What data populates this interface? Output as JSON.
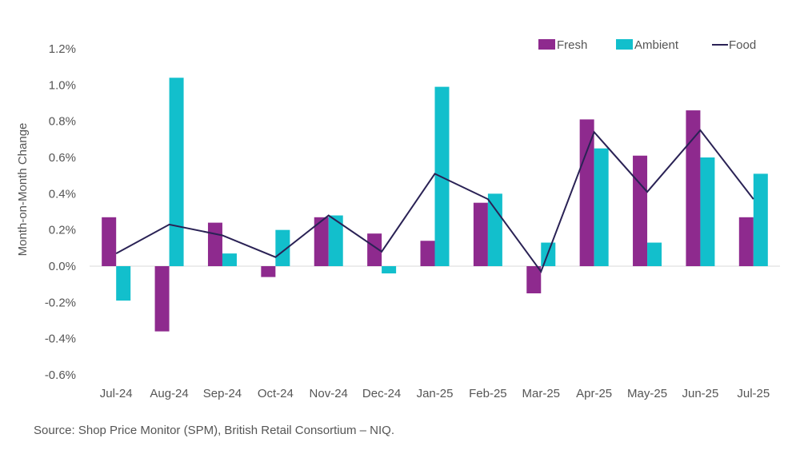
{
  "colors": {
    "fresh": "#8E2A8E",
    "ambient": "#12BFCC",
    "food": "#2A2255",
    "zero_line": "#D9D9D9"
  },
  "source": "Source: Shop Price Monitor (SPM), British Retail Consortium – NIQ.",
  "chart_data": {
    "type": "bar",
    "categories": [
      "Jul-24",
      "Aug-24",
      "Sep-24",
      "Oct-24",
      "Nov-24",
      "Dec-24",
      "Jan-25",
      "Feb-25",
      "Mar-25",
      "Apr-25",
      "May-25",
      "Jun-25",
      "Jul-25"
    ],
    "series": [
      {
        "name": "Fresh",
        "type": "bar",
        "values": [
          0.27,
          -0.36,
          0.24,
          -0.06,
          0.27,
          0.18,
          0.14,
          0.35,
          -0.15,
          0.81,
          0.61,
          0.86,
          0.27
        ]
      },
      {
        "name": "Ambient",
        "type": "bar",
        "values": [
          -0.19,
          1.04,
          0.07,
          0.2,
          0.28,
          -0.04,
          0.99,
          0.4,
          0.13,
          0.65,
          0.13,
          0.6,
          0.51
        ]
      },
      {
        "name": "Food",
        "type": "line",
        "values": [
          0.07,
          0.23,
          0.17,
          0.05,
          0.28,
          0.08,
          0.51,
          0.37,
          -0.03,
          0.74,
          0.41,
          0.75,
          0.37
        ]
      }
    ],
    "title": "",
    "xlabel": "",
    "ylabel": "Month-on-Month Change",
    "ylim": [
      -0.6,
      1.2
    ],
    "yticks": [
      "1.2%",
      "1.0%",
      "0.8%",
      "0.6%",
      "0.4%",
      "0.2%",
      "0.0%",
      "-0.2%",
      "-0.4%",
      "-0.6%"
    ],
    "ytick_values": [
      1.2,
      1.0,
      0.8,
      0.6,
      0.4,
      0.2,
      0.0,
      -0.2,
      -0.4,
      -0.6
    ],
    "grid": false,
    "legend_position": "top-right"
  }
}
